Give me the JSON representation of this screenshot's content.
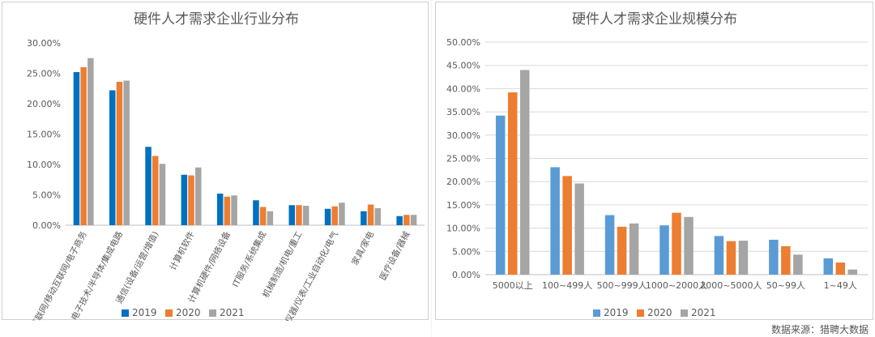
{
  "chart_data": [
    {
      "type": "bar",
      "title": "硬件人才需求企业行业分布",
      "categories": [
        "互联网/移动互联网/电子商务",
        "电子技术/半导体/集成电路",
        "通信(设备/运营/增值)",
        "计算机软件",
        "计算机硬件/网络设备",
        "IT服务/系统集成",
        "机械制造/机电/重工",
        "仪器/仪表/工业自动化/电气",
        "家具/家电",
        "医疗设备/器械"
      ],
      "series": [
        {
          "name": "2019",
          "color": "#0070C0",
          "values": [
            25.2,
            22.2,
            12.9,
            8.3,
            5.2,
            4.1,
            3.3,
            2.7,
            2.3,
            1.5
          ]
        },
        {
          "name": "2020",
          "color": "#ED7D31",
          "values": [
            26.0,
            23.6,
            11.4,
            8.2,
            4.7,
            3.0,
            3.3,
            3.1,
            3.4,
            1.7
          ]
        },
        {
          "name": "2021",
          "color": "#A5A5A5",
          "values": [
            27.5,
            23.8,
            10.1,
            9.5,
            4.9,
            2.3,
            3.2,
            3.7,
            2.8,
            1.7
          ]
        }
      ],
      "ylim": [
        0,
        30
      ],
      "yticks": [
        "0.00%",
        "5.00%",
        "10.00%",
        "15.00%",
        "20.00%",
        "25.00%",
        "30.00%"
      ],
      "legend": "bottom",
      "grid": false,
      "xlabel": "",
      "ylabel": ""
    },
    {
      "type": "bar",
      "title": "硬件人才需求企业规模分布",
      "categories": [
        "5000以上",
        "100~499人",
        "500~999人",
        "1000~2000人",
        "2000~5000人",
        "50~99人",
        "1~49人"
      ],
      "series": [
        {
          "name": "2019",
          "color": "#5B9BD5",
          "values": [
            34.2,
            23.1,
            12.8,
            10.6,
            8.3,
            7.5,
            3.5
          ]
        },
        {
          "name": "2020",
          "color": "#ED7D31",
          "values": [
            39.2,
            21.2,
            10.3,
            13.3,
            7.2,
            6.1,
            2.6
          ]
        },
        {
          "name": "2021",
          "color": "#A5A5A5",
          "values": [
            44.0,
            19.6,
            11.0,
            12.4,
            7.3,
            4.3,
            1.1
          ]
        }
      ],
      "ylim": [
        0,
        50
      ],
      "yticks": [
        "0.00%",
        "5.00%",
        "10.00%",
        "15.00%",
        "20.00%",
        "25.00%",
        "30.00%",
        "35.00%",
        "40.00%",
        "45.00%",
        "50.00%"
      ],
      "legend": "bottom",
      "grid": true,
      "xlabel": "",
      "ylabel": ""
    }
  ],
  "footer": {
    "source": "数据来源：猎聘大数据"
  }
}
